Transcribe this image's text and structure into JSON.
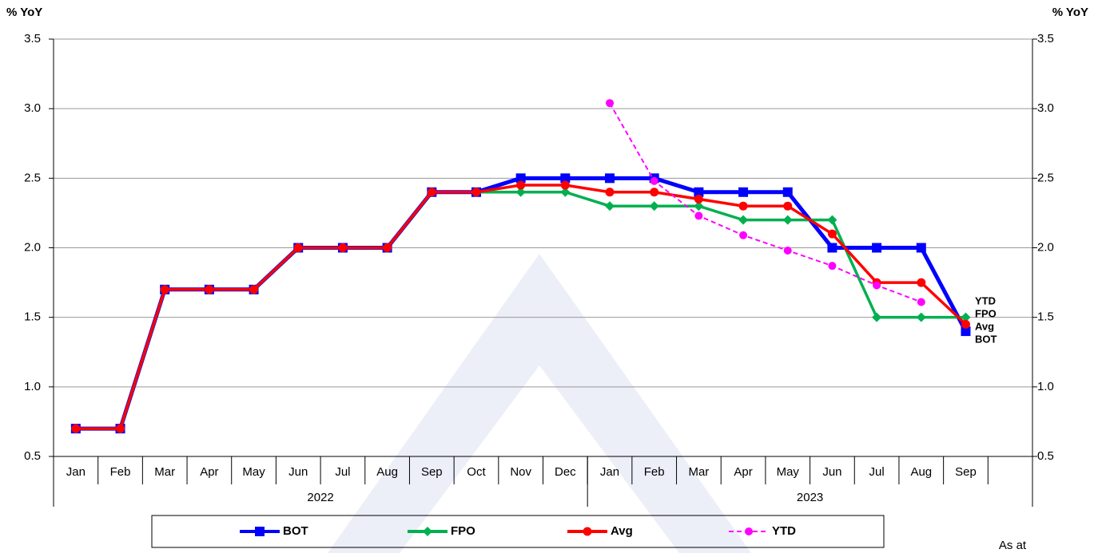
{
  "chart_data": {
    "type": "line",
    "y_label": "% YoY",
    "y2_label": "% YoY",
    "categories": [
      "Jan",
      "Feb",
      "Mar",
      "Apr",
      "May",
      "Jun",
      "Jul",
      "Aug",
      "Sep",
      "Oct",
      "Nov",
      "Dec",
      "Jan",
      "Feb",
      "Mar",
      "Apr",
      "May",
      "Jun",
      "Jul",
      "Aug",
      "Sep",
      null
    ],
    "x_groups": [
      {
        "label": "2022",
        "categories": 12
      },
      {
        "label": "2023",
        "categories": 10
      }
    ],
    "series": [
      {
        "name": "BOT",
        "color": "#0000ff",
        "marker": "square",
        "dash": false,
        "values": [
          0.7,
          0.7,
          1.7,
          1.7,
          1.7,
          2.0,
          2.0,
          2.0,
          2.4,
          2.4,
          2.5,
          2.5,
          2.5,
          2.5,
          2.4,
          2.4,
          2.4,
          2.0,
          2.0,
          2.0,
          1.4,
          null
        ]
      },
      {
        "name": "FPO",
        "color": "#00b050",
        "marker": "diamond",
        "dash": false,
        "values": [
          0.7,
          0.7,
          1.7,
          1.7,
          1.7,
          2.0,
          2.0,
          2.0,
          2.4,
          2.4,
          2.4,
          2.4,
          2.3,
          2.3,
          2.3,
          2.2,
          2.2,
          2.2,
          1.5,
          1.5,
          1.5,
          null
        ]
      },
      {
        "name": "Avg",
        "color": "#ff0000",
        "marker": "circle",
        "dash": false,
        "values": [
          0.7,
          0.7,
          1.7,
          1.7,
          1.7,
          2.0,
          2.0,
          2.0,
          2.4,
          2.4,
          2.45,
          2.45,
          2.4,
          2.4,
          2.35,
          2.3,
          2.3,
          2.1,
          1.75,
          1.75,
          1.45,
          null
        ]
      },
      {
        "name": "YTD",
        "color": "#ff00ff",
        "marker": "circle",
        "dash": true,
        "values": [
          null,
          null,
          null,
          null,
          null,
          null,
          null,
          null,
          null,
          null,
          null,
          null,
          3.04,
          2.48,
          2.23,
          2.09,
          1.98,
          1.87,
          1.73,
          1.61,
          null,
          null
        ]
      }
    ],
    "ylim": [
      0.5,
      3.5
    ],
    "yticks": [
      0.5,
      {
        "value": 1,
        "label": "1.0"
      },
      1.5,
      {
        "value": 2,
        "label": "2.0"
      },
      2.5,
      {
        "value": 3,
        "label": "3.0"
      },
      3.5
    ],
    "grid": true,
    "note": "As at"
  }
}
